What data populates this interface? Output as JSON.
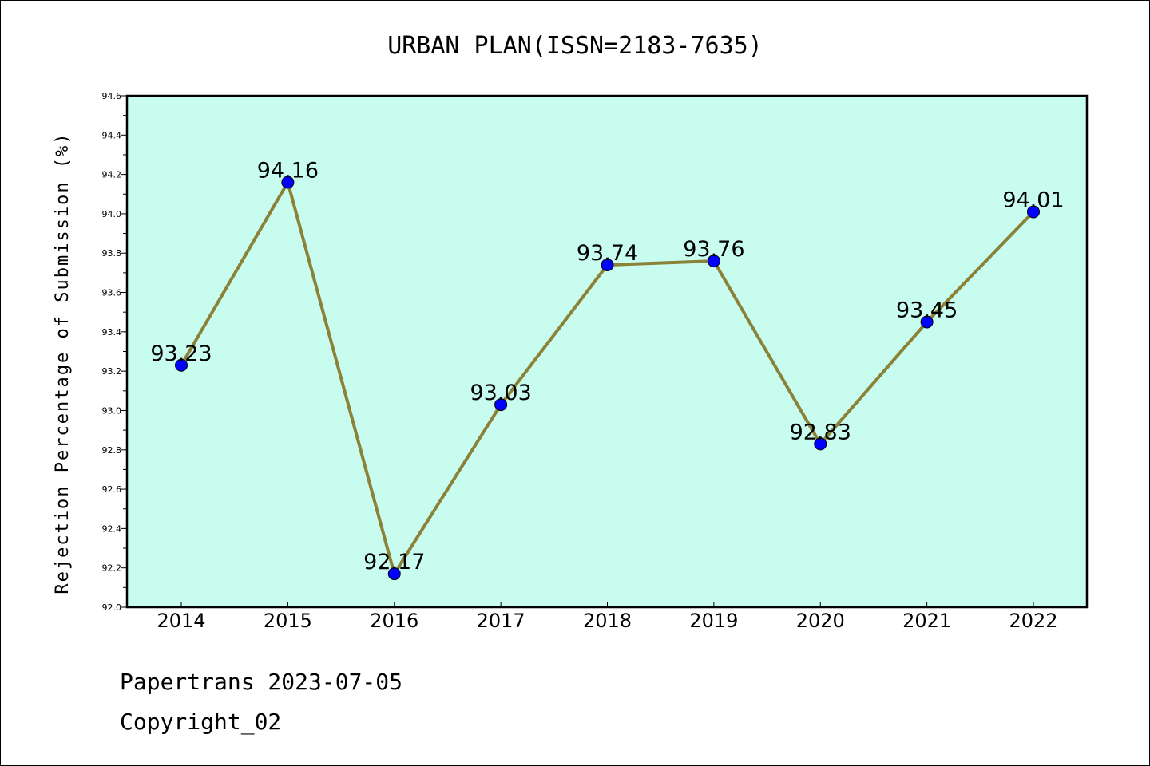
{
  "chart_data": {
    "type": "line",
    "title": "URBAN PLAN(ISSN=2183-7635)",
    "ylabel": "Rejection Percentage of Submission (%)",
    "xlabel": "",
    "categories": [
      "2014",
      "2015",
      "2016",
      "2017",
      "2018",
      "2019",
      "2020",
      "2021",
      "2022"
    ],
    "series": [
      {
        "values": [
          93.23,
          94.16,
          92.17,
          93.03,
          93.74,
          93.76,
          92.83,
          93.45,
          94.01
        ]
      }
    ],
    "data_labels": [
      "93.23",
      "94.16",
      "92.17",
      "93.03",
      "93.74",
      "93.76",
      "92.83",
      "93.45",
      "94.01"
    ],
    "ylim": [
      92.0,
      94.6
    ],
    "yticks": [
      92.0,
      92.2,
      92.4,
      92.6,
      92.8,
      93.0,
      93.2,
      93.4,
      93.6,
      93.8,
      94.0,
      94.2,
      94.4,
      94.6
    ],
    "grid": false,
    "colors": {
      "plot_background": "#c8fcee",
      "line": "#8b8238",
      "marker": "#0000ff"
    }
  },
  "footer": {
    "line1": "Papertrans 2023-07-05",
    "line2": "Copyright_02"
  }
}
